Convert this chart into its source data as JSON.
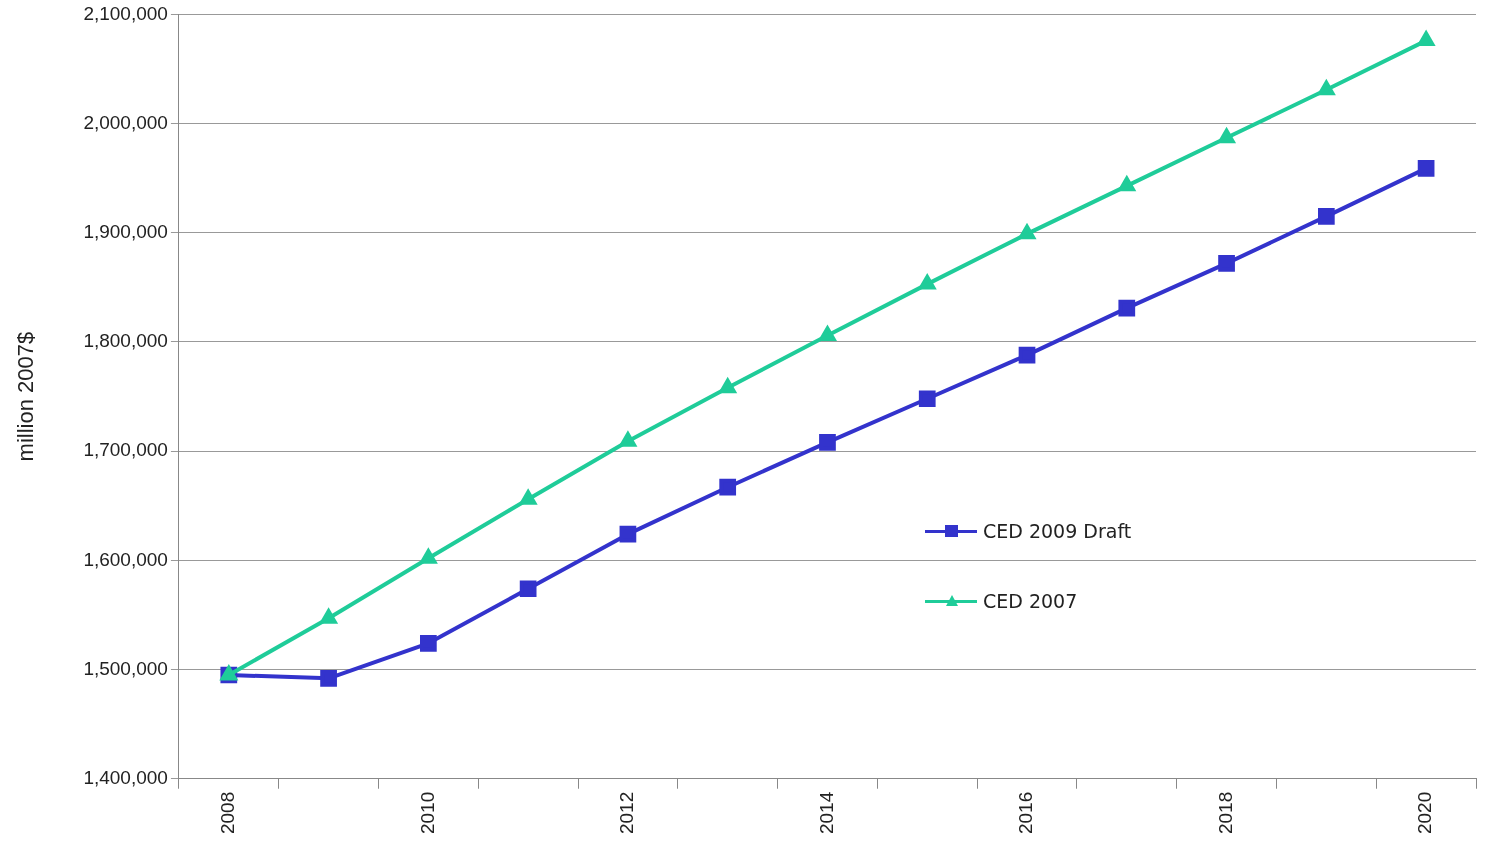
{
  "chart_data": {
    "type": "line",
    "ylabel": "million 2007$",
    "categories": [
      "2008",
      null,
      "2010",
      null,
      "2012",
      null,
      "2014",
      null,
      "2016",
      null,
      "2018",
      null,
      "2020"
    ],
    "series": [
      {
        "name": "CED 2009  Draft",
        "color": "#3333cc",
        "marker": "square",
        "values": [
          1495000,
          1492000,
          1524000,
          1574000,
          1624000,
          1667000,
          1708000,
          1748000,
          1788000,
          1831000,
          1872000,
          1915000,
          1959000
        ]
      },
      {
        "name": "CED 2007",
        "color": "#1fcc99",
        "marker": "triangle",
        "values": [
          1495000,
          1547000,
          1602000,
          1656000,
          1709000,
          1758000,
          1806000,
          1853000,
          1899000,
          1943000,
          1987000,
          2031000,
          2076000
        ]
      }
    ],
    "ylim": [
      1400000,
      2100000
    ],
    "yticks": [
      {
        "value": 1400000,
        "label": "1,400,000"
      },
      {
        "value": 1500000,
        "label": "1,500,000"
      },
      {
        "value": 1600000,
        "label": "1,600,000"
      },
      {
        "value": 1700000,
        "label": "1,700,000"
      },
      {
        "value": 1800000,
        "label": "1,800,000"
      },
      {
        "value": 1900000,
        "label": "1,900,000"
      },
      {
        "value": 2000000,
        "label": "2,000,000"
      },
      {
        "value": 2100000,
        "label": "2,100,000"
      }
    ],
    "grid": "y",
    "legend": "right",
    "line_style": "solid"
  }
}
